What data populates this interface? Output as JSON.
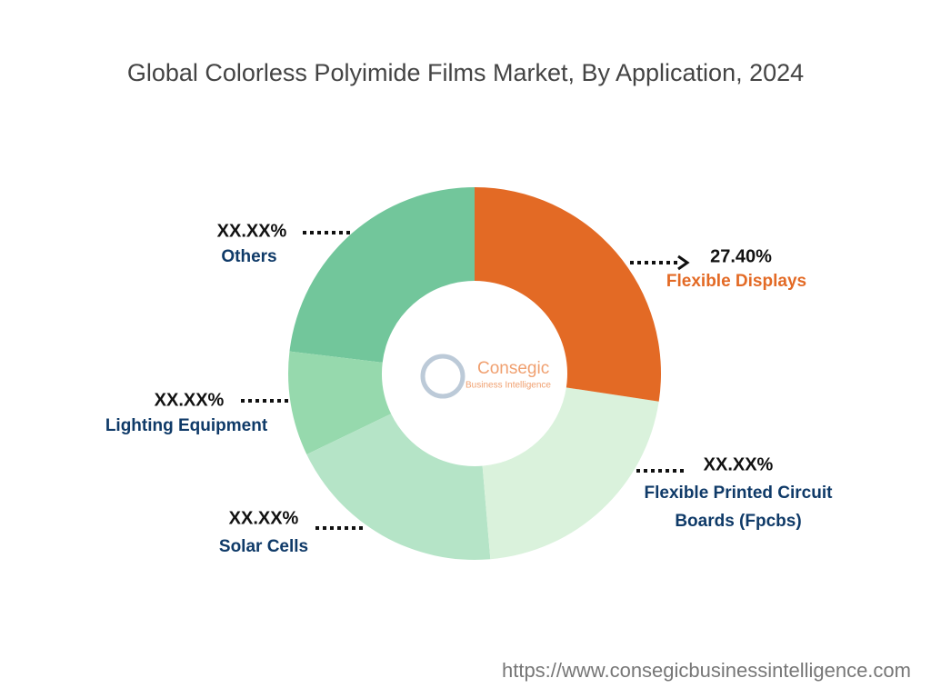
{
  "chart_data": {
    "type": "donut",
    "title": "Global Colorless Polyimide Films Market, By Application, 2024",
    "categories": [
      "Flexible Displays",
      "Flexible Printed Circuit Boards (Fpcbs)",
      "Solar Cells",
      "Lighting Equipment",
      "Others"
    ],
    "values": [
      27.4,
      21.25,
      19.2,
      9.05,
      23.1
    ],
    "value_labels": [
      "27.40%",
      "XX.XX%",
      "XX.XX%",
      "XX.XX%",
      "XX.XX%"
    ],
    "colors": [
      "#e36a25",
      "#daf2dc",
      "#b5e4c7",
      "#96d9ad",
      "#72c69b"
    ],
    "label_colors": [
      "#e36a25",
      "#0f3a68",
      "#0f3a68",
      "#0f3a68",
      "#0f3a68"
    ],
    "watermark": [
      "Consegic",
      "Business Intelligence"
    ],
    "source": "https://www.consegicbusinessintelligence.com"
  }
}
